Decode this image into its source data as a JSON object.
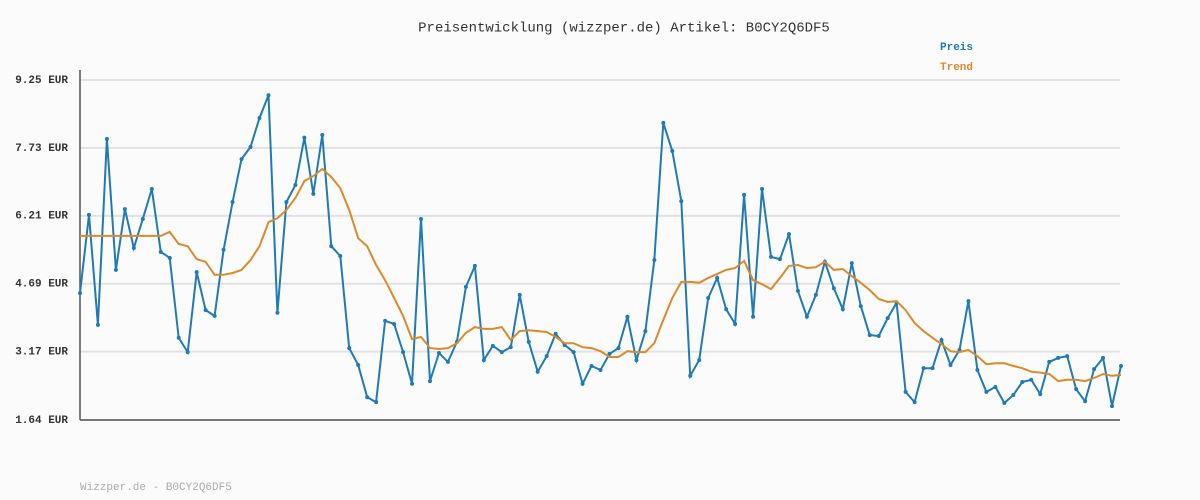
{
  "chart_data": {
    "type": "line",
    "title": "Preisentwicklung (wizzper.de) Artikel: B0CY2Q6DF5",
    "footer": "Wizzper.de - B0CY2Q6DF5",
    "ylim": [
      1.64,
      9.25
    ],
    "yticks": [
      {
        "value": 1.64,
        "label": "1.64 EUR"
      },
      {
        "value": 3.17,
        "label": "3.17 EUR"
      },
      {
        "value": 4.69,
        "label": "4.69 EUR"
      },
      {
        "value": 6.21,
        "label": "6.21 EUR"
      },
      {
        "value": 7.73,
        "label": "7.73 EUR"
      },
      {
        "value": 9.25,
        "label": "9.25 EUR"
      }
    ],
    "grid": true,
    "legend": "top-right",
    "series": [
      {
        "name": "Preis",
        "color": "#1f7ab5",
        "markers": true,
        "values": [
          4.48,
          6.23,
          3.77,
          7.93,
          5.0,
          6.36,
          5.49,
          6.14,
          6.81,
          5.4,
          5.27,
          3.48,
          3.16,
          4.95,
          4.1,
          3.97,
          5.45,
          6.52,
          7.48,
          7.75,
          8.4,
          8.91,
          4.04,
          6.52,
          6.9,
          7.96,
          6.7,
          8.02,
          5.53,
          5.31,
          3.25,
          2.87,
          2.15,
          2.04,
          3.86,
          3.79,
          3.16,
          2.45,
          6.14,
          2.51,
          3.14,
          2.94,
          3.39,
          4.62,
          5.09,
          2.98,
          3.3,
          3.16,
          3.27,
          4.44,
          3.39,
          2.72,
          3.07,
          3.57,
          3.32,
          3.16,
          2.45,
          2.85,
          2.76,
          3.12,
          3.25,
          3.95,
          2.98,
          3.63,
          5.22,
          8.29,
          7.66,
          6.54,
          2.63,
          2.98,
          4.37,
          4.82,
          4.12,
          3.79,
          6.68,
          3.95,
          6.81,
          5.29,
          5.24,
          5.8,
          4.53,
          3.95,
          4.44,
          5.18,
          4.59,
          4.12,
          5.15,
          4.19,
          3.54,
          3.52,
          3.92,
          4.26,
          2.27,
          2.04,
          2.8,
          2.8,
          3.43,
          2.87,
          3.21,
          4.3,
          2.76,
          2.27,
          2.38,
          2.02,
          2.2,
          2.49,
          2.54,
          2.22,
          2.94,
          3.03,
          3.07,
          2.33,
          2.06,
          2.78,
          3.03,
          1.95,
          2.85
        ]
      },
      {
        "name": "Trend",
        "color": "#d98a2b",
        "markers": false,
        "values": [
          5.76,
          5.76,
          5.76,
          5.76,
          5.76,
          5.76,
          5.76,
          5.76,
          5.76,
          5.76,
          5.85,
          5.58,
          5.53,
          5.24,
          5.18,
          4.89,
          4.89,
          4.93,
          5.0,
          5.22,
          5.53,
          6.07,
          6.16,
          6.34,
          6.61,
          6.99,
          7.1,
          7.26,
          7.08,
          6.83,
          6.34,
          5.71,
          5.53,
          5.11,
          4.77,
          4.37,
          3.97,
          3.45,
          3.5,
          3.25,
          3.23,
          3.25,
          3.36,
          3.59,
          3.72,
          3.68,
          3.68,
          3.72,
          3.43,
          3.63,
          3.65,
          3.63,
          3.61,
          3.5,
          3.36,
          3.36,
          3.27,
          3.25,
          3.18,
          3.05,
          3.05,
          3.18,
          3.16,
          3.16,
          3.36,
          3.88,
          4.37,
          4.73,
          4.73,
          4.71,
          4.82,
          4.91,
          5.0,
          5.04,
          5.2,
          4.77,
          4.68,
          4.57,
          4.82,
          5.09,
          5.11,
          5.04,
          5.06,
          5.18,
          5.0,
          5.02,
          4.86,
          4.71,
          4.55,
          4.35,
          4.28,
          4.3,
          4.1,
          3.81,
          3.63,
          3.48,
          3.34,
          3.18,
          3.16,
          3.21,
          3.07,
          2.89,
          2.91,
          2.91,
          2.85,
          2.8,
          2.72,
          2.7,
          2.67,
          2.51,
          2.54,
          2.54,
          2.51,
          2.58,
          2.67,
          2.63,
          2.65
        ]
      }
    ]
  }
}
